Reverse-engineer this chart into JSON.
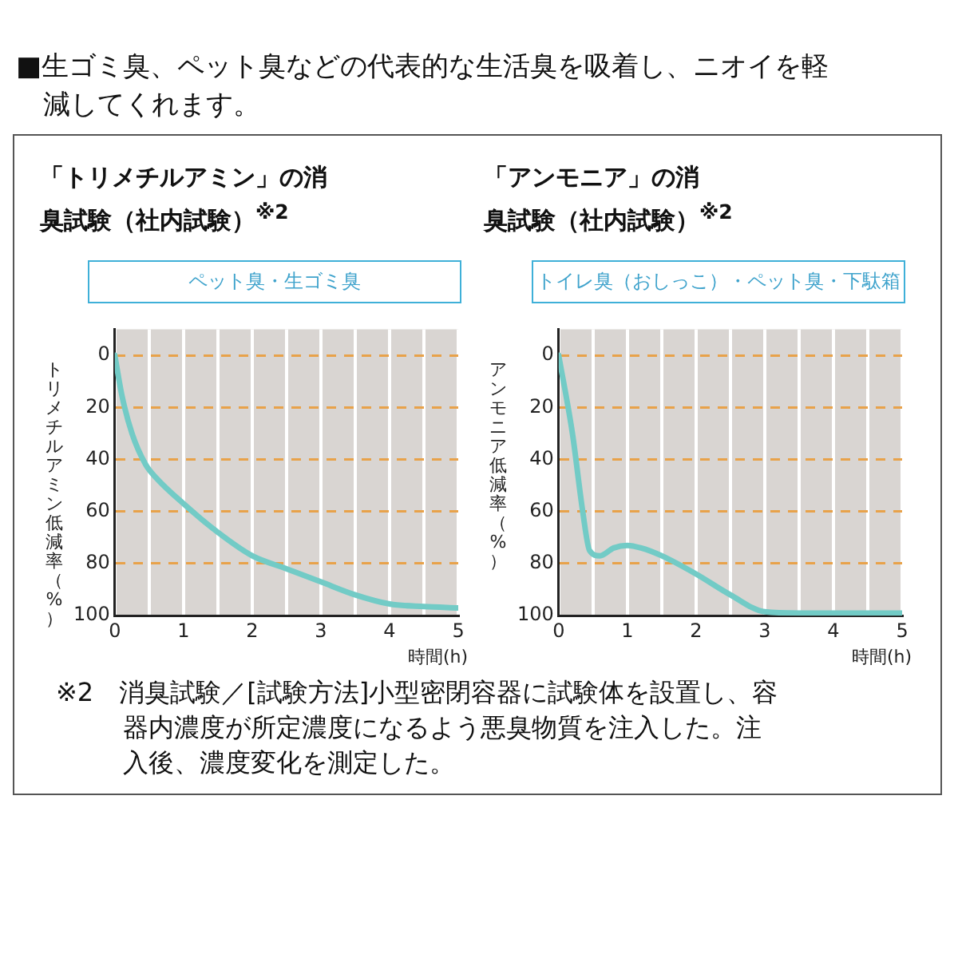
{
  "chart_data": [
    {
      "type": "line",
      "title": "「トリメチルアミン」の消臭試験（社内試験）$^{※2}$",
      "subtitle": "ペット臭・生ゴミ臭",
      "xlabel": "時間(h)",
      "ylabel": "トリメチルアミン低減率（%）",
      "annotations": [
        "■生ゴミ臭、ペット臭などの代表的な生活臭を吸着し、ニオイを軽減してくれます。"
      ],
      "x": [
        0,
        0.1,
        0.25,
        0.45,
        0.6,
        1,
        1.5,
        2,
        2.5,
        3,
        3.5,
        4,
        4.5,
        5
      ],
      "series": [
        {
          "color": "#72cbc6",
          "values": [
            0,
            15,
            30,
            42,
            47,
            57,
            68,
            77,
            82,
            87,
            92,
            95.5,
            96.5,
            97
          ]
        }
      ],
      "xlim": [
        0,
        5
      ],
      "xticks": [
        0,
        {
          "value": 0.5,
          "label": null
        },
        1,
        {
          "value": 1.5,
          "label": null
        },
        2,
        {
          "value": 2.5,
          "label": null
        },
        3,
        {
          "value": 3.5,
          "label": null
        },
        4,
        {
          "value": 4.5,
          "label": null
        },
        5
      ],
      "ylim": [
        100,
        -10
      ],
      "yticks": [
        0,
        20,
        40,
        60,
        80,
        100
      ],
      "grid": true,
      "legend": false,
      "marker": "none",
      "line_style": "solid"
    },
    {
      "type": "line",
      "title": "「アンモニア」の消臭試験（社内試験）$^{※2}$",
      "subtitle": "トイレ臭（おしっこ）・ペット臭・下駄箱",
      "xlabel": "時間(h)",
      "ylabel": "アンモニア低減率（%）",
      "annotations": [
        "※2　消臭試験／[試験方法]小型密閉容器に試験体を設置し、容器内濃度が所定濃度になるよう悪臭物質を注入した。注入後、濃度変化を測定した。"
      ],
      "x": [
        0,
        0.2,
        0.35,
        0.45,
        0.6,
        0.8,
        1,
        1.2,
        1.5,
        2,
        2.5,
        3,
        3.5,
        4,
        5
      ],
      "series": [
        {
          "color": "#72cbc6",
          "values": [
            0,
            30,
            60,
            75,
            77,
            74,
            73,
            74,
            77,
            84,
            92,
            98.5,
            99,
            99,
            99
          ]
        }
      ],
      "xlim": [
        0,
        5
      ],
      "xticks": [
        0,
        {
          "value": 0.5,
          "label": null
        },
        1,
        {
          "value": 1.5,
          "label": null
        },
        2,
        {
          "value": 2.5,
          "label": null
        },
        3,
        {
          "value": 3.5,
          "label": null
        },
        4,
        {
          "value": 4.5,
          "label": null
        },
        5
      ],
      "ylim": [
        100,
        -10
      ],
      "yticks": [
        0,
        20,
        40,
        60,
        80,
        100
      ],
      "grid": true,
      "legend": false,
      "marker": "none",
      "line_style": "solid"
    }
  ]
}
